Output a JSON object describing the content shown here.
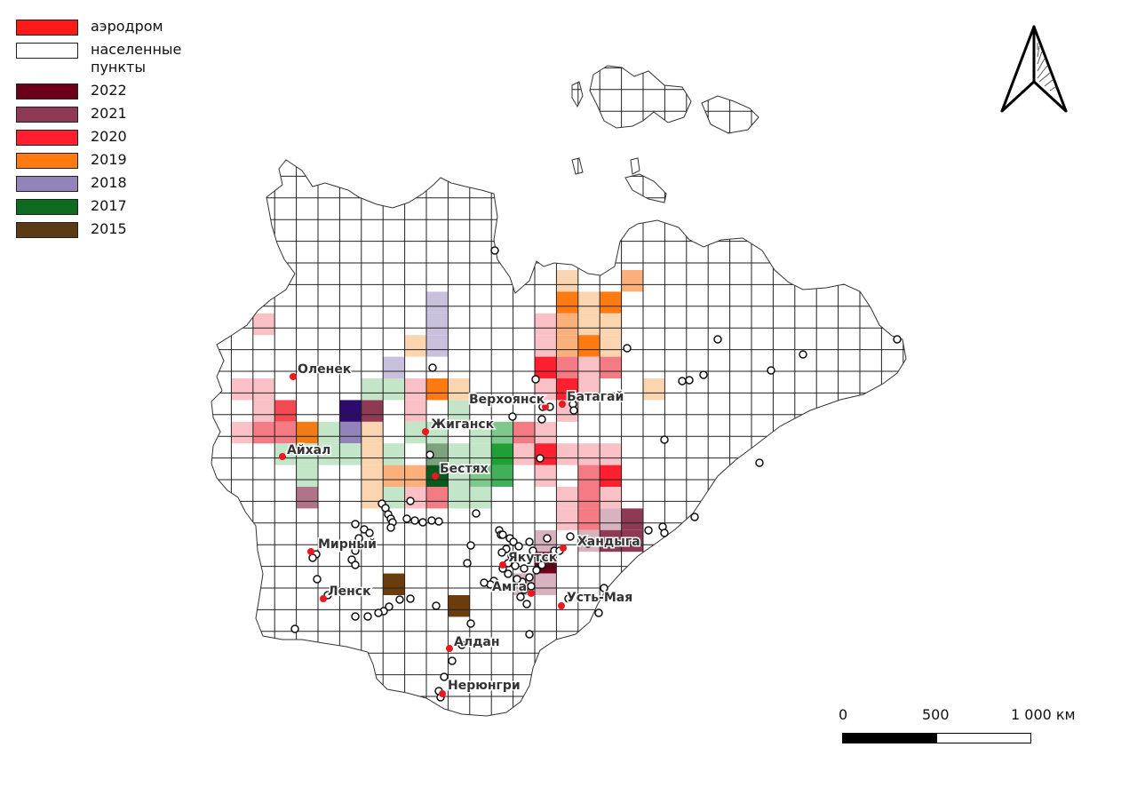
{
  "legend": {
    "items": [
      {
        "label": "аэродром",
        "color": "#ff1a1a"
      },
      {
        "label": "населенные пункты",
        "color": "#ffffff"
      },
      {
        "label": "2022",
        "color": "#6b0018"
      },
      {
        "label": "2021",
        "color": "#8e3a55"
      },
      {
        "label": "2020",
        "color": "#ff1f2e"
      },
      {
        "label": "2019",
        "color": "#ff7a0f"
      },
      {
        "label": "2018",
        "color": "#9283b8"
      },
      {
        "label": "2017",
        "color": "#0c6b1e"
      },
      {
        "label": "2015",
        "color": "#5b3a16"
      }
    ]
  },
  "north_arrow": {
    "icon": "north-arrow-icon"
  },
  "scale_bar": {
    "labels": [
      "0",
      "500",
      "1 000 км"
    ],
    "unit": "км"
  },
  "cities": [
    {
      "name": "Оленек"
    },
    {
      "name": "Айхал"
    },
    {
      "name": "Мирный"
    },
    {
      "name": "Ленск"
    },
    {
      "name": "Жиганск"
    },
    {
      "name": "Бестях"
    },
    {
      "name": "Верхоянск"
    },
    {
      "name": "Батагай"
    },
    {
      "name": "Якутск"
    },
    {
      "name": "Амга"
    },
    {
      "name": "Хандыга"
    },
    {
      "name": "Усть-Мая"
    },
    {
      "name": "Алдан"
    },
    {
      "name": "Нерюнгри"
    }
  ]
}
